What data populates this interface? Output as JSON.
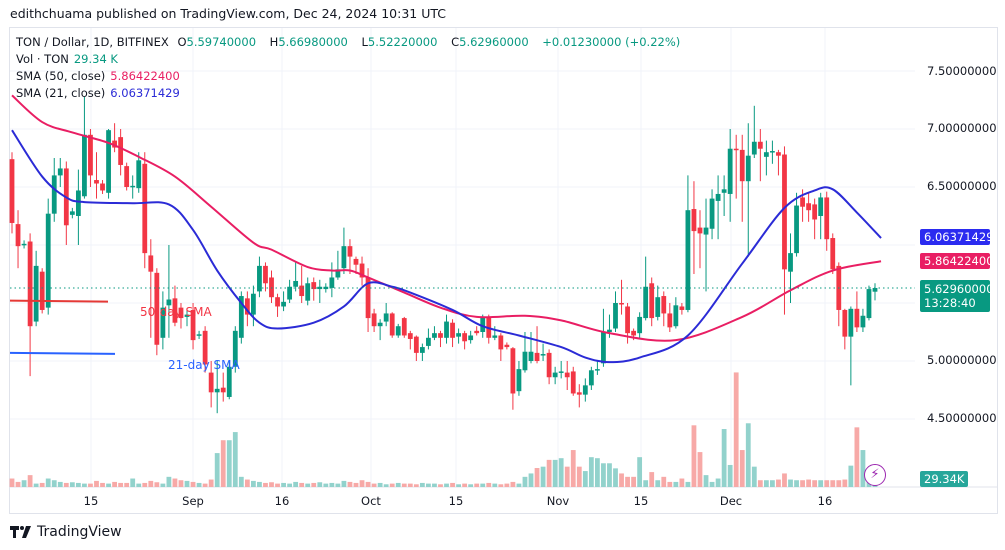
{
  "publisher_line": "edithchuama published on TradingView.com, Dec 24, 2024 10:31 UTC",
  "legend": {
    "symbol": "TON / Dollar, 1D, BITFINEX",
    "open_label": "O",
    "open": "5.59740000",
    "high_label": "H",
    "high": "5.66980000",
    "low_label": "L",
    "low": "5.52220000",
    "close_label": "C",
    "close": "5.62960000",
    "change": "+0.01230000 (+0.22%)",
    "volume_label": "Vol · TON",
    "volume": "29.34 K",
    "sma50_label": "SMA (50, close)",
    "sma50": "5.86422400",
    "sma21_label": "SMA (21, close)",
    "sma21": "6.06371429"
  },
  "price_axis": [
    "7.50000000",
    "7.00000000",
    "6.50000000",
    "5.00000000",
    "4.50000000"
  ],
  "price_tags": {
    "sma21": "6.06371429",
    "sma50": "5.86422400",
    "last_price": "5.62960000",
    "countdown": "13:28:40",
    "volume": "29.34K"
  },
  "time_axis": [
    "15",
    "Sep",
    "16",
    "Oct",
    "15",
    "Nov",
    "15",
    "Dec",
    "16"
  ],
  "annotations": {
    "sma50": "50-day SMA",
    "sma21": "21-day SMA"
  },
  "logo": "TradingView",
  "colors": {
    "up": "#089981",
    "down": "#f23645",
    "sma50": "#e91e63",
    "sma21": "#2b2bd6",
    "vol_up": "#92d2cc",
    "vol_down": "#f7a9a7"
  },
  "chart_data": {
    "type": "candlestick",
    "symbol": "TON / Dollar",
    "interval": "1D",
    "ylim": [
      4.0,
      7.75
    ],
    "yticks": [
      4.5,
      5.0,
      5.5,
      6.0,
      6.5,
      7.0,
      7.5
    ],
    "ohlc_note_format": "[open, close, high?, low?]",
    "candles": [
      [
        6.74,
        6.19,
        6.8,
        6.1
      ],
      [
        6.18,
        5.99,
        6.3,
        5.8
      ],
      [
        6.0,
        6.01
      ],
      [
        6.03,
        5.3,
        6.1,
        4.87
      ],
      [
        5.34,
        5.82,
        5.95,
        5.3
      ],
      [
        5.77,
        5.44
      ],
      [
        5.46,
        6.27,
        6.4,
        5.4
      ],
      [
        6.27,
        6.6,
        6.75,
        6.2
      ],
      [
        6.6,
        6.66,
        6.75,
        6.5
      ],
      [
        6.66,
        6.17,
        6.72,
        6.0
      ],
      [
        6.26,
        6.29
      ],
      [
        6.25,
        6.47,
        6.65,
        6.0
      ],
      [
        6.42,
        6.95,
        7.28,
        6.4
      ],
      [
        6.95,
        6.6,
        7.0,
        6.5
      ],
      [
        6.56,
        6.53,
        6.8,
        6.4
      ],
      [
        6.53,
        6.47
      ],
      [
        6.45,
        6.99,
        7.0,
        6.4
      ],
      [
        6.9,
        6.84,
        7.05,
        6.8
      ],
      [
        6.93,
        6.69,
        7.0,
        6.6
      ],
      [
        6.68,
        6.5
      ],
      [
        6.5,
        6.51,
        6.6,
        6.4
      ],
      [
        6.49,
        6.73,
        6.8,
        6.45
      ],
      [
        6.7,
        5.93,
        6.8,
        5.8
      ],
      [
        5.91,
        5.77,
        6.05,
        5.2
      ],
      [
        5.76,
        5.14,
        5.8,
        5.05
      ],
      [
        5.2,
        5.46,
        5.6,
        5.1
      ],
      [
        5.48,
        5.53,
        6.0,
        5.2
      ],
      [
        5.54,
        5.33,
        5.65,
        5.3
      ],
      [
        5.46,
        5.37,
        5.5,
        5.28
      ],
      [
        5.38,
        5.4,
        5.45,
        5.3
      ],
      [
        5.44,
        5.18,
        5.5,
        5.1
      ],
      [
        5.22,
        5.23
      ],
      [
        5.26,
        4.97,
        5.3,
        4.9
      ],
      [
        4.9,
        4.73,
        5.0,
        4.6
      ],
      [
        4.73,
        4.76,
        5.0,
        4.55
      ],
      [
        4.77,
        4.73,
        4.9,
        4.65
      ],
      [
        4.69,
        4.95,
        5.0,
        4.67
      ],
      [
        4.95,
        5.26,
        5.3,
        4.9
      ],
      [
        5.2,
        5.56,
        5.6,
        5.15
      ],
      [
        5.54,
        5.4,
        5.6,
        5.3
      ],
      [
        5.4,
        5.58,
        5.65,
        5.3
      ],
      [
        5.6,
        5.82,
        5.9,
        5.55
      ],
      [
        5.82,
        5.67,
        5.85,
        5.6
      ],
      [
        5.72,
        5.55,
        5.78,
        5.5
      ],
      [
        5.55,
        5.47,
        5.58,
        5.38
      ],
      [
        5.47,
        5.51,
        5.6,
        5.43
      ],
      [
        5.53,
        5.64,
        5.7,
        5.5
      ],
      [
        5.64,
        5.69,
        5.85,
        5.6
      ],
      [
        5.65,
        5.56,
        5.82,
        5.5
      ],
      [
        5.52,
        5.67,
        5.72,
        5.48
      ],
      [
        5.68,
        5.62,
        5.72,
        5.52
      ],
      [
        5.62,
        5.64,
        5.7,
        5.5
      ],
      [
        5.62,
        5.64
      ],
      [
        5.63,
        5.72,
        5.85,
        5.55
      ],
      [
        5.72,
        5.79,
        5.95,
        5.7
      ],
      [
        5.8,
        5.99,
        6.15,
        5.75
      ],
      [
        5.99,
        5.9,
        6.05,
        5.75
      ],
      [
        5.88,
        5.83,
        5.9,
        5.75
      ],
      [
        5.84,
        5.72,
        5.9,
        5.65
      ],
      [
        5.72,
        5.37,
        5.8,
        5.25
      ],
      [
        5.41,
        5.3,
        5.45,
        5.25
      ],
      [
        5.3,
        5.33,
        5.36,
        5.18
      ],
      [
        5.34,
        5.41,
        5.5,
        5.3
      ],
      [
        5.41,
        5.22,
        5.42,
        5.2
      ],
      [
        5.22,
        5.3,
        5.32,
        5.2
      ],
      [
        5.37,
        5.22,
        5.38,
        5.2
      ],
      [
        5.24,
        5.19,
        5.26,
        5.1
      ],
      [
        5.21,
        5.07,
        5.22,
        5.0
      ],
      [
        5.07,
        5.12,
        5.15,
        5.0
      ],
      [
        5.13,
        5.2,
        5.28,
        5.1
      ],
      [
        5.2,
        5.24,
        5.3,
        5.18
      ],
      [
        5.24,
        5.2,
        5.26,
        5.12
      ],
      [
        5.2,
        5.34,
        5.4,
        5.15
      ],
      [
        5.33,
        5.2,
        5.36,
        5.12
      ],
      [
        5.21,
        5.24,
        5.28,
        5.15
      ],
      [
        5.24,
        5.17,
        5.26,
        5.1
      ],
      [
        5.18,
        5.22,
        5.26,
        5.15
      ],
      [
        5.26,
        5.24,
        5.3,
        5.22
      ],
      [
        5.25,
        5.38,
        5.4,
        5.2
      ],
      [
        5.38,
        5.2,
        5.4,
        5.15
      ],
      [
        5.2,
        5.22,
        5.3,
        5.18
      ],
      [
        5.22,
        5.1,
        5.24,
        5.0
      ],
      [
        5.14,
        5.12,
        5.16,
        5.1
      ],
      [
        5.11,
        4.72,
        5.12,
        4.58
      ],
      [
        4.74,
        4.93,
        5.0,
        4.7
      ],
      [
        4.92,
        5.08,
        5.25,
        4.9
      ],
      [
        5.0,
        5.08,
        5.25,
        4.98
      ],
      [
        5.07,
        5.0,
        5.3,
        4.98
      ],
      [
        5.05,
        5.06,
        5.15,
        5.0
      ],
      [
        5.07,
        4.86,
        5.1,
        4.8
      ],
      [
        4.86,
        4.9,
        4.95,
        4.8
      ],
      [
        4.9,
        4.91,
        5.0,
        4.85
      ],
      [
        4.9,
        4.86,
        5.0,
        4.75
      ],
      [
        4.91,
        4.72,
        4.95,
        4.7
      ],
      [
        4.73,
        4.71,
        4.8,
        4.6
      ],
      [
        4.71,
        4.79,
        4.85,
        4.65
      ],
      [
        4.79,
        4.92,
        4.95,
        4.75
      ],
      [
        4.93,
        4.93,
        5.0,
        4.88
      ],
      [
        4.98,
        5.25,
        5.45,
        4.95
      ],
      [
        5.25,
        5.27,
        5.4,
        5.2
      ],
      [
        5.28,
        5.5,
        5.6,
        5.25
      ],
      [
        5.5,
        5.49,
        5.7,
        5.4
      ],
      [
        5.47,
        5.24,
        5.5,
        5.15
      ],
      [
        5.26,
        5.22,
        5.28,
        5.18
      ],
      [
        5.24,
        5.38,
        5.42,
        5.2
      ],
      [
        5.37,
        5.64,
        5.9,
        5.35
      ],
      [
        5.67,
        5.37,
        5.72,
        5.3
      ],
      [
        5.38,
        5.55,
        5.65,
        5.35
      ],
      [
        5.56,
        5.41,
        5.6,
        5.3
      ],
      [
        5.41,
        5.29,
        5.5,
        5.25
      ],
      [
        5.3,
        5.48,
        5.55,
        5.28
      ],
      [
        5.47,
        5.44,
        5.5,
        5.4
      ],
      [
        5.44,
        6.3,
        6.6,
        5.42
      ],
      [
        6.31,
        6.12,
        6.55,
        5.75
      ],
      [
        6.15,
        6.1,
        6.3,
        5.8
      ],
      [
        6.09,
        6.15,
        6.4,
        5.6
      ],
      [
        6.14,
        6.4,
        6.48,
        6.05
      ],
      [
        6.38,
        6.44,
        6.6,
        6.05
      ],
      [
        6.45,
        6.48,
        6.6,
        6.25
      ],
      [
        6.44,
        6.83,
        7.0,
        6.2
      ],
      [
        6.83,
        6.82,
        6.95,
        6.4
      ],
      [
        6.82,
        6.55,
        6.95,
        6.2
      ],
      [
        6.55,
        6.77,
        7.05,
        5.9
      ],
      [
        6.78,
        6.89,
        7.2,
        6.75
      ],
      [
        6.89,
        6.83,
        7.0,
        6.55
      ],
      [
        6.76,
        6.8,
        6.9,
        6.6
      ],
      [
        6.8,
        6.81,
        6.9,
        6.7
      ],
      [
        6.8,
        6.77,
        6.82,
        6.6
      ],
      [
        6.78,
        5.79,
        6.85,
        5.4
      ],
      [
        5.77,
        5.93,
        6.1,
        5.5
      ],
      [
        5.93,
        6.34,
        6.45,
        5.9
      ],
      [
        6.41,
        6.33,
        6.48,
        6.2
      ],
      [
        6.36,
        6.3,
        6.45,
        6.2
      ],
      [
        6.35,
        6.22,
        6.4,
        6.05
      ],
      [
        6.25,
        6.41,
        6.45,
        6.05
      ],
      [
        6.41,
        6.05,
        6.46,
        5.95
      ],
      [
        6.06,
        5.79,
        6.1,
        5.75
      ],
      [
        5.82,
        5.44,
        5.85,
        5.3
      ],
      [
        5.44,
        5.21,
        5.45,
        5.1
      ],
      [
        5.21,
        5.45,
        5.47,
        4.79
      ],
      [
        5.45,
        5.29,
        5.6,
        5.25
      ],
      [
        5.29,
        5.39,
        5.45,
        5.25
      ],
      [
        5.37,
        5.62,
        5.65,
        5.35
      ],
      [
        5.5974,
        5.6296,
        5.6698,
        5.5222
      ]
    ],
    "volume_k": [
      25,
      15,
      20,
      35,
      10,
      12,
      25,
      20,
      15,
      12,
      14,
      12,
      10,
      10,
      18,
      12,
      10,
      15,
      12,
      12,
      25,
      10,
      12,
      18,
      14,
      10,
      30,
      25,
      20,
      18,
      15,
      12,
      10,
      22,
      100,
      138,
      138,
      162,
      30,
      22,
      18,
      15,
      12,
      14,
      10,
      12,
      10,
      15,
      12,
      10,
      12,
      14,
      10,
      12,
      10,
      18,
      15,
      12,
      20,
      15,
      10,
      12,
      8,
      10,
      12,
      10,
      10,
      8,
      12,
      10,
      10,
      8,
      10,
      12,
      8,
      10,
      8,
      10,
      10,
      12,
      10,
      8,
      10,
      15,
      10,
      30,
      40,
      56,
      60,
      80,
      80,
      85,
      60,
      109,
      60,
      47,
      88,
      85,
      70,
      70,
      55,
      40,
      30,
      30,
      88,
      20,
      44,
      20,
      30,
      15,
      15,
      25,
      15,
      182,
      103,
      35,
      15,
      25,
      171,
      65,
      338,
      109,
      188,
      60,
      20,
      20,
      20,
      22,
      40,
      22,
      20,
      20,
      22,
      20,
      20,
      20,
      20,
      20,
      22,
      63,
      176,
      109,
      44,
      35,
      29.34
    ],
    "sma21_points": [
      [
        0,
        6.99
      ],
      [
        5,
        6.59
      ],
      [
        9,
        6.41
      ],
      [
        12,
        6.37
      ],
      [
        20,
        6.36
      ],
      [
        26,
        6.35
      ],
      [
        30,
        6.13
      ],
      [
        34,
        5.78
      ],
      [
        38,
        5.5
      ],
      [
        41,
        5.33
      ],
      [
        44,
        5.28
      ],
      [
        50,
        5.33
      ],
      [
        55,
        5.47
      ],
      [
        59,
        5.67
      ],
      [
        63,
        5.64
      ],
      [
        66,
        5.59
      ],
      [
        73,
        5.44
      ],
      [
        78,
        5.3
      ],
      [
        84,
        5.22
      ],
      [
        91,
        5.12
      ],
      [
        95,
        5.03
      ],
      [
        99,
        4.99
      ],
      [
        104,
        5.03
      ],
      [
        112,
        5.22
      ],
      [
        121,
        5.84
      ],
      [
        128,
        6.32
      ],
      [
        133,
        6.47
      ],
      [
        136,
        6.48
      ],
      [
        140,
        6.28
      ],
      [
        144,
        6.06
      ]
    ],
    "sma50_points": [
      [
        0,
        7.29
      ],
      [
        5,
        7.06
      ],
      [
        10,
        6.97
      ],
      [
        16,
        6.88
      ],
      [
        21,
        6.76
      ],
      [
        27,
        6.59
      ],
      [
        33,
        6.33
      ],
      [
        40,
        6.02
      ],
      [
        43,
        5.96
      ],
      [
        49,
        5.81
      ],
      [
        53,
        5.78
      ],
      [
        56,
        5.78
      ],
      [
        59,
        5.72
      ],
      [
        65,
        5.59
      ],
      [
        71,
        5.46
      ],
      [
        77,
        5.38
      ],
      [
        85,
        5.39
      ],
      [
        91,
        5.35
      ],
      [
        99,
        5.24
      ],
      [
        110,
        5.18
      ],
      [
        121,
        5.38
      ],
      [
        129,
        5.61
      ],
      [
        136,
        5.78
      ],
      [
        144,
        5.86
      ]
    ],
    "legend_lines": {
      "sma50_level": 5.52,
      "sma21_level": 5.07
    }
  }
}
